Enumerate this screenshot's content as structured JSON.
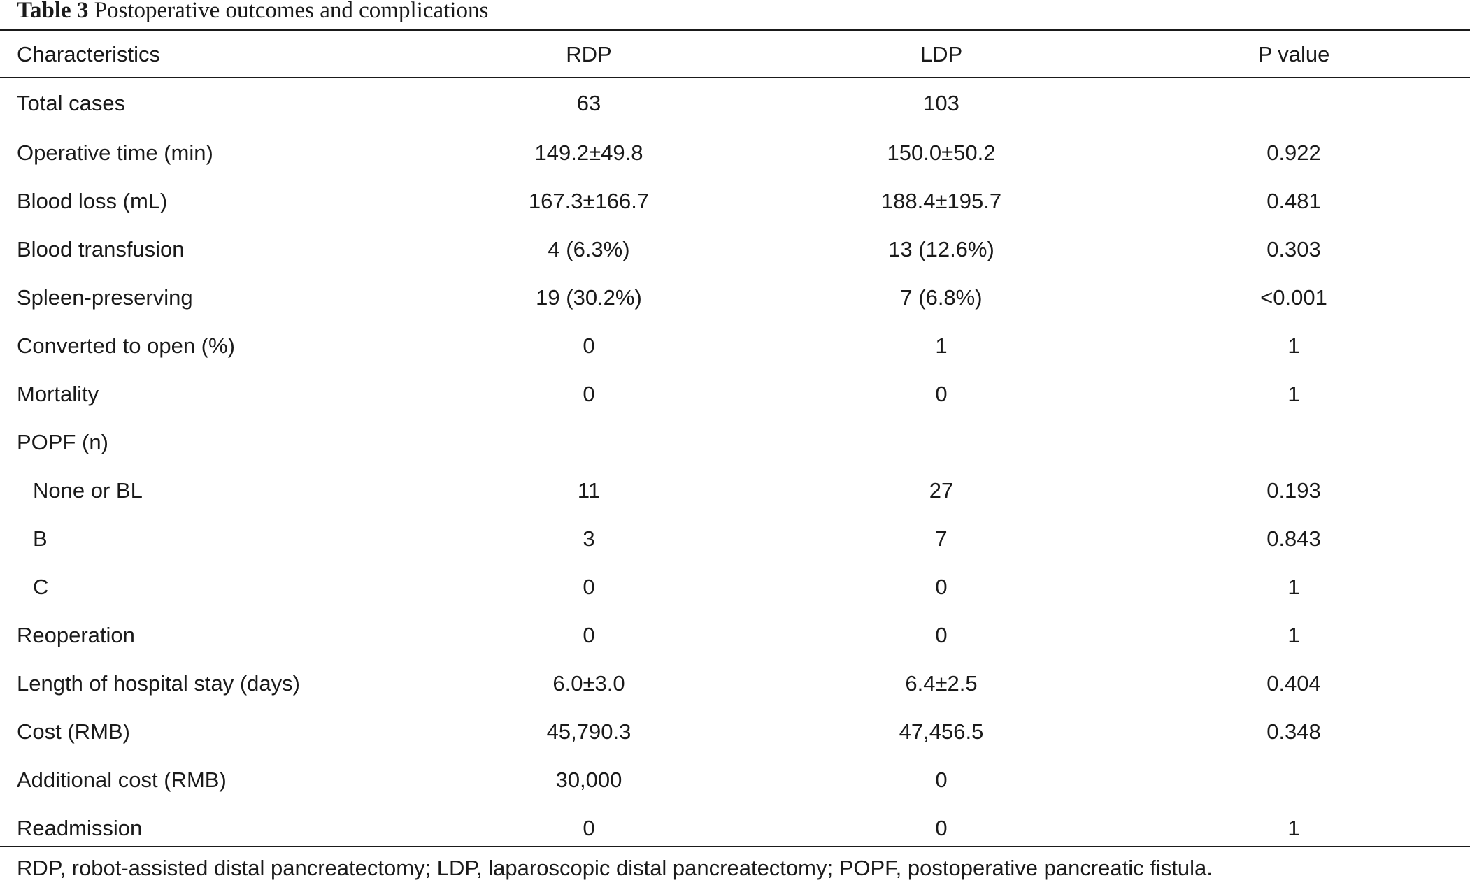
{
  "title": {
    "label": "Table 3",
    "text": "Postoperative outcomes and complications"
  },
  "headers": [
    "Characteristics",
    "RDP",
    "LDP",
    "P value"
  ],
  "rows": [
    {
      "label": "Total cases",
      "indent": false,
      "rdp": "63",
      "ldp": "103",
      "p": ""
    },
    {
      "label": "Operative time (min)",
      "indent": false,
      "rdp": "149.2±49.8",
      "ldp": "150.0±50.2",
      "p": "0.922"
    },
    {
      "label": "Blood loss (mL)",
      "indent": false,
      "rdp": "167.3±166.7",
      "ldp": "188.4±195.7",
      "p": "0.481"
    },
    {
      "label": "Blood transfusion",
      "indent": false,
      "rdp": "4 (6.3%)",
      "ldp": "13 (12.6%)",
      "p": "0.303"
    },
    {
      "label": "Spleen-preserving",
      "indent": false,
      "rdp": "19 (30.2%)",
      "ldp": "7 (6.8%)",
      "p": "<0.001"
    },
    {
      "label": "Converted to open (%)",
      "indent": false,
      "rdp": "0",
      "ldp": "1",
      "p": "1"
    },
    {
      "label": "Mortality",
      "indent": false,
      "rdp": "0",
      "ldp": "0",
      "p": "1"
    },
    {
      "label": "POPF (n)",
      "indent": false,
      "rdp": "",
      "ldp": "",
      "p": ""
    },
    {
      "label": "None or BL",
      "indent": true,
      "rdp": "11",
      "ldp": "27",
      "p": "0.193"
    },
    {
      "label": "B",
      "indent": true,
      "rdp": "3",
      "ldp": "7",
      "p": "0.843"
    },
    {
      "label": "C",
      "indent": true,
      "rdp": "0",
      "ldp": "0",
      "p": "1"
    },
    {
      "label": "Reoperation",
      "indent": false,
      "rdp": "0",
      "ldp": "0",
      "p": "1"
    },
    {
      "label": "Length of hospital stay (days)",
      "indent": false,
      "rdp": "6.0±3.0",
      "ldp": "6.4±2.5",
      "p": "0.404"
    },
    {
      "label": "Cost (RMB)",
      "indent": false,
      "rdp": "45,790.3",
      "ldp": "47,456.5",
      "p": "0.348"
    },
    {
      "label": "Additional cost (RMB)",
      "indent": false,
      "rdp": "30,000",
      "ldp": "0",
      "p": ""
    },
    {
      "label": "Readmission",
      "indent": false,
      "rdp": "0",
      "ldp": "0",
      "p": "1"
    }
  ],
  "footnote": "RDP, robot-assisted distal pancreatectomy; LDP, laparoscopic distal pancreatectomy; POPF, postoperative pancreatic fistula."
}
